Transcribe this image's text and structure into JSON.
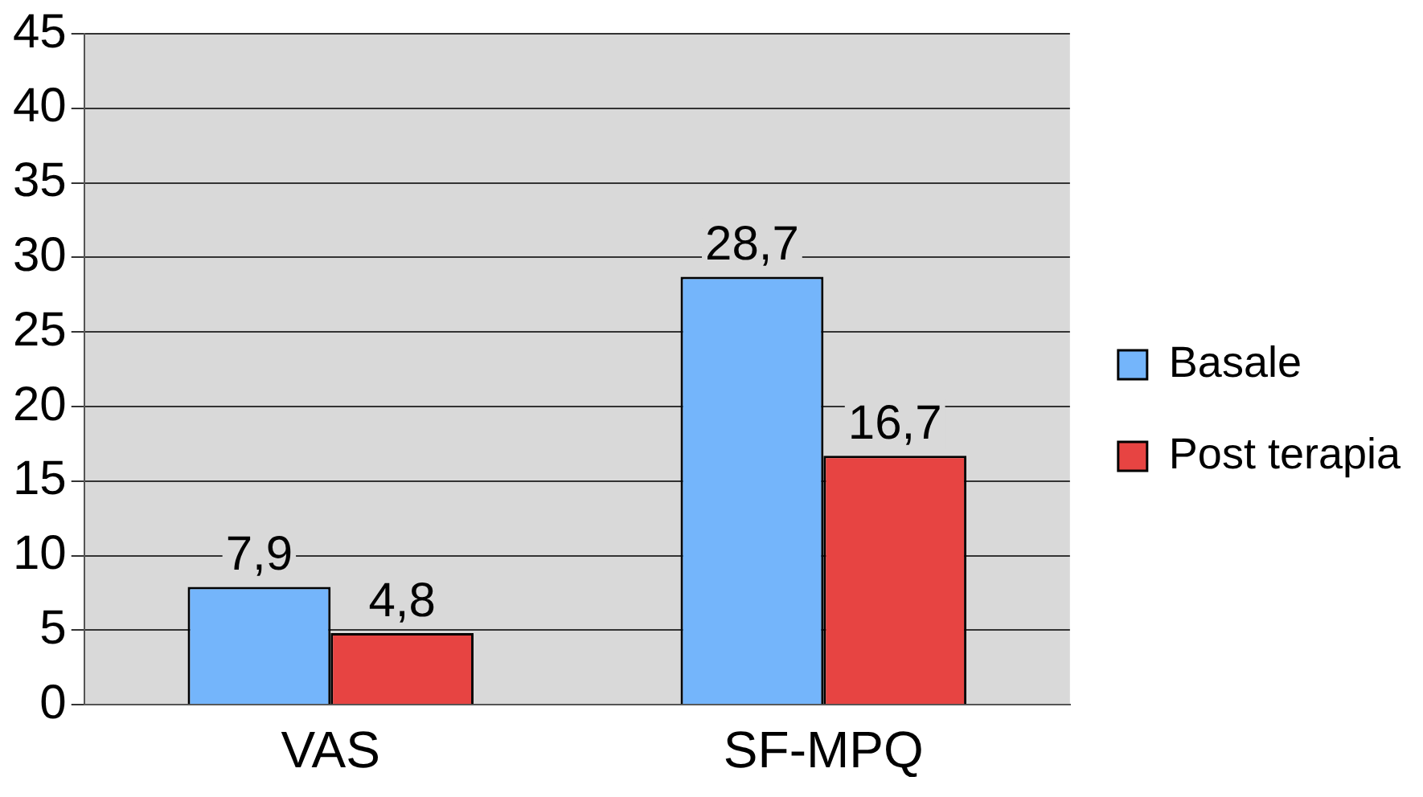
{
  "chart_data": {
    "type": "bar",
    "categories": [
      "VAS",
      "SF-MPQ"
    ],
    "series": [
      {
        "name": "Basale",
        "color": "#74b5fb",
        "values": [
          7.9,
          28.7
        ],
        "value_labels": [
          "7,9",
          "28,7"
        ]
      },
      {
        "name": "Post terapia",
        "color": "#e74442",
        "values": [
          4.8,
          16.7
        ],
        "value_labels": [
          "4,8",
          "16,7"
        ]
      }
    ],
    "ylim": [
      0,
      45
    ],
    "yticks": [
      0,
      5,
      10,
      15,
      20,
      25,
      30,
      35,
      40,
      45
    ],
    "grid": "y",
    "legend": "right"
  }
}
